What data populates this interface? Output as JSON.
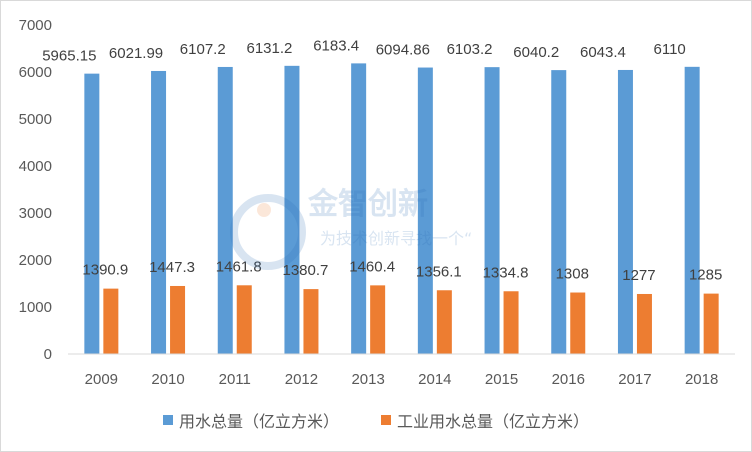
{
  "chart_data": {
    "type": "bar",
    "title": "",
    "xlabel": "",
    "ylabel": "",
    "categories": [
      "2009",
      "2010",
      "2011",
      "2012",
      "2013",
      "2014",
      "2015",
      "2016",
      "2017",
      "2018"
    ],
    "series": [
      {
        "name": "用水总量（亿立方米）",
        "color": "#5b9bd5",
        "values": [
          5965.15,
          6021.99,
          6107.2,
          6131.2,
          6183.4,
          6094.86,
          6103.2,
          6040.2,
          6043.4,
          6110
        ],
        "labels": [
          "5965.15",
          "6021.99",
          "6107.2",
          "6131.2",
          "6183.4",
          "6094.86",
          "6103.2",
          "6040.2",
          "6043.4",
          "6110"
        ]
      },
      {
        "name": "工业用水总量（亿立方米）",
        "color": "#ed7d31",
        "values": [
          1390.9,
          1447.3,
          1461.8,
          1380.7,
          1460.4,
          1356.1,
          1334.8,
          1308,
          1277,
          1285
        ],
        "labels": [
          "1390.9",
          "1447.3",
          "1461.8",
          "1380.7",
          "1460.4",
          "1356.1",
          "1334.8",
          "1308",
          "1277",
          "1285"
        ]
      }
    ],
    "ylim": [
      0,
      7000
    ],
    "yticks": [
      0,
      1000,
      2000,
      3000,
      4000,
      5000,
      6000,
      7000
    ],
    "grid": false,
    "legend_position": "bottom"
  },
  "watermark": {
    "line1": "金智创新",
    "line2": "为技术创新寻找一个“"
  }
}
